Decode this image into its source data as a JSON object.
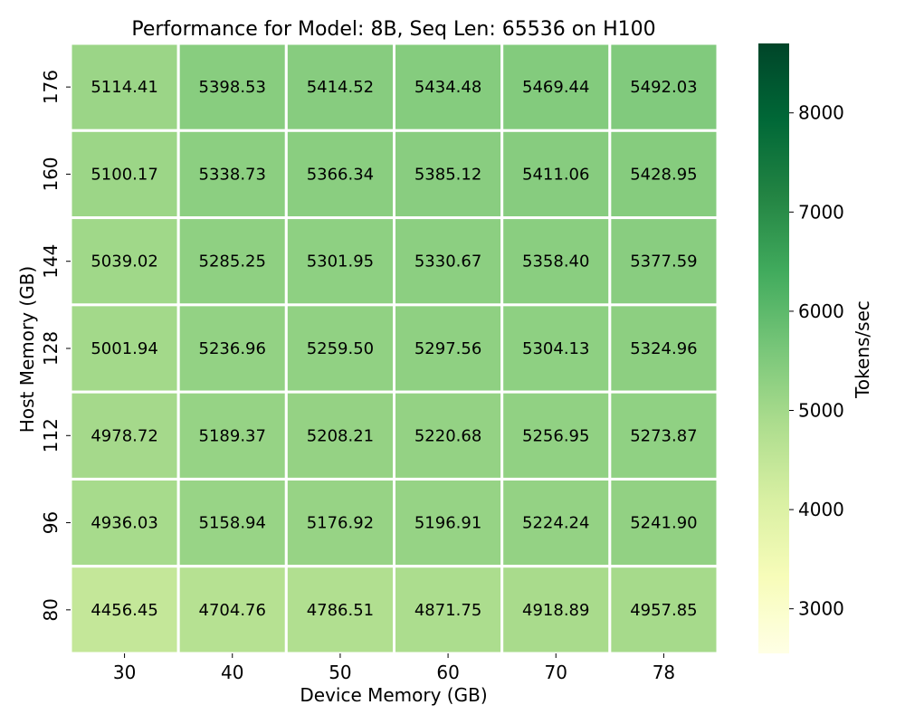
{
  "chart_data": {
    "type": "heatmap",
    "title": "Performance for Model: 8B, Seq Len: 65536 on H100",
    "xlabel": "Device Memory (GB)",
    "ylabel": "Host Memory (GB)",
    "x_categories": [
      "30",
      "40",
      "50",
      "60",
      "70",
      "78"
    ],
    "y_categories": [
      "176",
      "160",
      "144",
      "128",
      "112",
      "96",
      "80"
    ],
    "values": [
      [
        5114.41,
        5398.53,
        5414.52,
        5434.48,
        5469.44,
        5492.03
      ],
      [
        5100.17,
        5338.73,
        5366.34,
        5385.12,
        5411.06,
        5428.95
      ],
      [
        5039.02,
        5285.25,
        5301.95,
        5330.67,
        5358.4,
        5377.59
      ],
      [
        5001.94,
        5236.96,
        5259.5,
        5297.56,
        5304.13,
        5324.96
      ],
      [
        4978.72,
        5189.37,
        5208.21,
        5220.68,
        5256.95,
        5273.87
      ],
      [
        4936.03,
        5158.94,
        5176.92,
        5196.91,
        5224.24,
        5241.9
      ],
      [
        4456.45,
        4704.76,
        4786.51,
        4871.75,
        4918.89,
        4957.85
      ]
    ],
    "cell_labels": [
      [
        "5114.41",
        "5398.53",
        "5414.52",
        "5434.48",
        "5469.44",
        "5492.03"
      ],
      [
        "5100.17",
        "5338.73",
        "5366.34",
        "5385.12",
        "5411.06",
        "5428.95"
      ],
      [
        "5039.02",
        "5285.25",
        "5301.95",
        "5330.67",
        "5358.40",
        "5377.59"
      ],
      [
        "5001.94",
        "5236.96",
        "5259.50",
        "5297.56",
        "5304.13",
        "5324.96"
      ],
      [
        "4978.72",
        "5189.37",
        "5208.21",
        "5220.68",
        "5256.95",
        "5273.87"
      ],
      [
        "4936.03",
        "5158.94",
        "5176.92",
        "5196.91",
        "5224.24",
        "5241.90"
      ],
      [
        "4456.45",
        "4704.76",
        "4786.51",
        "4871.75",
        "4918.89",
        "4957.85"
      ]
    ],
    "colorbar": {
      "label": "Tokens/sec",
      "range": [
        2550,
        8700
      ],
      "ticks": [
        3000,
        4000,
        5000,
        6000,
        7000,
        8000
      ],
      "colormap": "YlGn",
      "colors": [
        "#ffffe5",
        "#f7fcb9",
        "#d9f0a3",
        "#addd8e",
        "#78c679",
        "#41ab5d",
        "#238443",
        "#006837",
        "#004529"
      ]
    },
    "grid": false,
    "cell_border_color": "#ffffff"
  }
}
